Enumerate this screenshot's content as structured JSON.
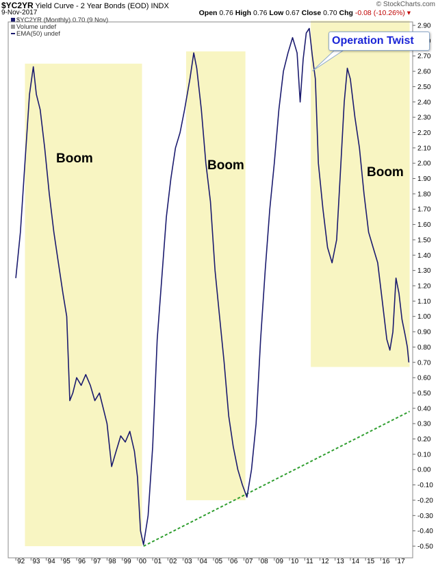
{
  "header": {
    "symbol": "$YC2YR",
    "title": "Yield Curve - 2 Year Bonds (EOD)",
    "exchange": "INDX",
    "date": "9-Nov-2017",
    "open_label": "Open",
    "open_value": "0.76",
    "high_label": "High",
    "high_value": "0.76",
    "low_label": "Low",
    "low_value": "0.67",
    "close_label": "Close",
    "close_value": "0.70",
    "chg_label": "Chg",
    "chg_value": "-0.08 (-10.26%)",
    "logo": "© StockCharts.com"
  },
  "legend": {
    "series": "$YC2YR (Monthly) 0.70 (9 Nov)",
    "volume": "Volume undef",
    "ema": "EMA(50) undef"
  },
  "annotations": {
    "operation_twist": "Operation Twist",
    "boom_1": "Boom",
    "boom_2": "Boom",
    "boom_3": "Boom"
  },
  "colors": {
    "series": "#1a1a6e",
    "zone": "#f8f5c2",
    "trend": "#2f9e2f",
    "annotation": "#1a24d6",
    "negative": "#c00000"
  },
  "chart_data": {
    "type": "line",
    "y_axis_position": "right",
    "ylim": [
      -0.55,
      2.93
    ],
    "grid": false,
    "y_ticks": [
      "2.90",
      "2.80",
      "2.70",
      "2.60",
      "2.50",
      "2.40",
      "2.30",
      "2.20",
      "2.10",
      "2.00",
      "1.90",
      "1.80",
      "1.70",
      "1.60",
      "1.50",
      "1.40",
      "1.30",
      "1.20",
      "1.10",
      "1.00",
      "0.90",
      "0.80",
      "0.70",
      "0.60",
      "0.50",
      "0.40",
      "0.30",
      "0.20",
      "0.10",
      "0.00",
      "-0.10",
      "-0.20",
      "-0.30",
      "-0.40",
      "-0.50"
    ],
    "x_ticks": [
      "92",
      "93",
      "94",
      "95",
      "96",
      "97",
      "98",
      "99",
      "00",
      "01",
      "02",
      "03",
      "04",
      "05",
      "06",
      "07",
      "08",
      "09",
      "10",
      "11",
      "12",
      "13",
      "14",
      "15",
      "16",
      "17"
    ],
    "series": [
      {
        "values_by_year": [
          {
            "x": 1992.0,
            "y": 1.25
          },
          {
            "x": 1992.3,
            "y": 1.55
          },
          {
            "x": 1992.6,
            "y": 2.0
          },
          {
            "x": 1992.9,
            "y": 2.45
          },
          {
            "x": 1993.15,
            "y": 2.63
          },
          {
            "x": 1993.35,
            "y": 2.45
          },
          {
            "x": 1993.6,
            "y": 2.35
          },
          {
            "x": 1993.9,
            "y": 2.1
          },
          {
            "x": 1994.2,
            "y": 1.8
          },
          {
            "x": 1994.5,
            "y": 1.55
          },
          {
            "x": 1994.8,
            "y": 1.35
          },
          {
            "x": 1995.1,
            "y": 1.15
          },
          {
            "x": 1995.35,
            "y": 1.0
          },
          {
            "x": 1995.55,
            "y": 0.45
          },
          {
            "x": 1995.75,
            "y": 0.5
          },
          {
            "x": 1996.0,
            "y": 0.6
          },
          {
            "x": 1996.3,
            "y": 0.55
          },
          {
            "x": 1996.6,
            "y": 0.62
          },
          {
            "x": 1996.9,
            "y": 0.55
          },
          {
            "x": 1997.2,
            "y": 0.45
          },
          {
            "x": 1997.5,
            "y": 0.5
          },
          {
            "x": 1997.8,
            "y": 0.38
          },
          {
            "x": 1998.0,
            "y": 0.3
          },
          {
            "x": 1998.3,
            "y": 0.02
          },
          {
            "x": 1998.6,
            "y": 0.12
          },
          {
            "x": 1998.9,
            "y": 0.22
          },
          {
            "x": 1999.2,
            "y": 0.18
          },
          {
            "x": 1999.5,
            "y": 0.25
          },
          {
            "x": 1999.8,
            "y": 0.12
          },
          {
            "x": 2000.0,
            "y": -0.05
          },
          {
            "x": 2000.2,
            "y": -0.4
          },
          {
            "x": 2000.4,
            "y": -0.49
          },
          {
            "x": 2000.7,
            "y": -0.3
          },
          {
            "x": 2001.0,
            "y": 0.15
          },
          {
            "x": 2001.3,
            "y": 0.85
          },
          {
            "x": 2001.6,
            "y": 1.25
          },
          {
            "x": 2001.9,
            "y": 1.65
          },
          {
            "x": 2002.2,
            "y": 1.9
          },
          {
            "x": 2002.5,
            "y": 2.1
          },
          {
            "x": 2002.8,
            "y": 2.2
          },
          {
            "x": 2003.1,
            "y": 2.35
          },
          {
            "x": 2003.45,
            "y": 2.55
          },
          {
            "x": 2003.7,
            "y": 2.72
          },
          {
            "x": 2003.9,
            "y": 2.62
          },
          {
            "x": 2004.2,
            "y": 2.35
          },
          {
            "x": 2004.5,
            "y": 2.0
          },
          {
            "x": 2004.8,
            "y": 1.75
          },
          {
            "x": 2005.1,
            "y": 1.3
          },
          {
            "x": 2005.4,
            "y": 1.0
          },
          {
            "x": 2005.7,
            "y": 0.7
          },
          {
            "x": 2006.0,
            "y": 0.35
          },
          {
            "x": 2006.3,
            "y": 0.15
          },
          {
            "x": 2006.6,
            "y": 0.0
          },
          {
            "x": 2006.9,
            "y": -0.1
          },
          {
            "x": 2007.2,
            "y": -0.18
          },
          {
            "x": 2007.5,
            "y": 0.0
          },
          {
            "x": 2007.8,
            "y": 0.3
          },
          {
            "x": 2008.1,
            "y": 0.85
          },
          {
            "x": 2008.4,
            "y": 1.3
          },
          {
            "x": 2008.7,
            "y": 1.7
          },
          {
            "x": 2009.0,
            "y": 2.0
          },
          {
            "x": 2009.3,
            "y": 2.35
          },
          {
            "x": 2009.6,
            "y": 2.6
          },
          {
            "x": 2009.9,
            "y": 2.72
          },
          {
            "x": 2010.2,
            "y": 2.82
          },
          {
            "x": 2010.5,
            "y": 2.72
          },
          {
            "x": 2010.7,
            "y": 2.4
          },
          {
            "x": 2010.9,
            "y": 2.68
          },
          {
            "x": 2011.1,
            "y": 2.85
          },
          {
            "x": 2011.3,
            "y": 2.88
          },
          {
            "x": 2011.5,
            "y": 2.7
          },
          {
            "x": 2011.7,
            "y": 2.55
          },
          {
            "x": 2011.9,
            "y": 2.0
          },
          {
            "x": 2012.2,
            "y": 1.7
          },
          {
            "x": 2012.5,
            "y": 1.45
          },
          {
            "x": 2012.8,
            "y": 1.35
          },
          {
            "x": 2013.1,
            "y": 1.5
          },
          {
            "x": 2013.35,
            "y": 1.95
          },
          {
            "x": 2013.6,
            "y": 2.4
          },
          {
            "x": 2013.8,
            "y": 2.62
          },
          {
            "x": 2014.0,
            "y": 2.55
          },
          {
            "x": 2014.3,
            "y": 2.3
          },
          {
            "x": 2014.6,
            "y": 2.1
          },
          {
            "x": 2014.9,
            "y": 1.8
          },
          {
            "x": 2015.2,
            "y": 1.55
          },
          {
            "x": 2015.5,
            "y": 1.45
          },
          {
            "x": 2015.8,
            "y": 1.35
          },
          {
            "x": 2016.1,
            "y": 1.1
          },
          {
            "x": 2016.4,
            "y": 0.85
          },
          {
            "x": 2016.6,
            "y": 0.78
          },
          {
            "x": 2016.8,
            "y": 0.9
          },
          {
            "x": 2017.0,
            "y": 1.25
          },
          {
            "x": 2017.2,
            "y": 1.15
          },
          {
            "x": 2017.4,
            "y": 0.98
          },
          {
            "x": 2017.6,
            "y": 0.88
          },
          {
            "x": 2017.75,
            "y": 0.8
          },
          {
            "x": 2017.85,
            "y": 0.7
          }
        ]
      }
    ],
    "shaded_periods": [
      {
        "label": "Boom",
        "x_start": 1992.6,
        "x_end": 2000.3,
        "y_low": -0.5,
        "y_high": 2.65
      },
      {
        "label": "Boom",
        "x_start": 2003.2,
        "x_end": 2007.1,
        "y_low": -0.2,
        "y_high": 2.73
      },
      {
        "label": "Boom",
        "x_start": 2011.4,
        "x_end": 2017.9,
        "y_low": 0.67,
        "y_high": 2.93
      }
    ],
    "trendline": {
      "style": "dashed",
      "x_start": 2000.4,
      "y_start": -0.5,
      "x_end": 2017.9,
      "y_end": 0.38
    }
  }
}
